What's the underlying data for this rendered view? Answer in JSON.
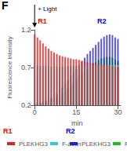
{
  "chart_data": {
    "type": "bar",
    "title": "F",
    "xlabel": "min",
    "ylabel": "Fluorescence intensity",
    "x": [
      0,
      1,
      2,
      3,
      4,
      5,
      6,
      7,
      8,
      9,
      10,
      11,
      12,
      13,
      14,
      15,
      16,
      17,
      18,
      19,
      20,
      21,
      22,
      23,
      24,
      25,
      26,
      27,
      28,
      29,
      30
    ],
    "xlim": [
      -0.5,
      31
    ],
    "xticks": [
      0,
      15,
      30
    ],
    "ylim": [
      0.2,
      1.2
    ],
    "yticks": [
      0.2,
      0.7,
      1.2
    ],
    "grid": false,
    "annotations": [
      {
        "text": "+ Light",
        "color": "black"
      },
      {
        "text": "R1",
        "color": "red"
      },
      {
        "text": "R2",
        "color": "blue"
      }
    ],
    "groups": [
      {
        "name": "R1",
        "color": "red"
      },
      {
        "name": "R2",
        "color": "blue"
      }
    ],
    "series": [
      {
        "name": "F-actin",
        "group": "R2",
        "color": "#22bb22",
        "values": [
          0.22,
          0.22,
          0.22,
          0.23,
          0.24,
          0.25,
          0.27,
          0.28,
          0.3,
          0.33,
          0.36,
          0.39,
          0.42,
          0.46,
          0.5,
          0.54,
          0.58,
          0.62,
          0.65,
          0.68,
          0.72,
          0.75,
          0.77,
          0.8,
          0.82,
          0.83,
          0.84,
          0.84,
          0.83,
          0.81,
          0.79
        ]
      },
      {
        "name": "PLEKHG3",
        "group": "R2",
        "color": "#2222cc",
        "values": [
          0.22,
          0.22,
          0.23,
          0.24,
          0.26,
          0.28,
          0.3,
          0.33,
          0.36,
          0.4,
          0.44,
          0.48,
          0.53,
          0.58,
          0.63,
          0.68,
          0.73,
          0.78,
          0.83,
          0.88,
          0.92,
          0.96,
          1.0,
          1.04,
          1.08,
          1.11,
          1.13,
          1.14,
          1.13,
          1.1,
          1.08
        ]
      },
      {
        "name": "F-actin",
        "group": "R1",
        "color": "#33cccc",
        "values": [
          0.73,
          0.73,
          0.72,
          0.72,
          0.72,
          0.71,
          0.71,
          0.71,
          0.71,
          0.71,
          0.71,
          0.71,
          0.72,
          0.72,
          0.72,
          0.72,
          0.73,
          0.73,
          0.73,
          0.73,
          0.73,
          0.73,
          0.73,
          0.73,
          0.73,
          0.73,
          0.73,
          0.73,
          0.73,
          0.73,
          0.73
        ]
      },
      {
        "name": "PLEKHG3",
        "group": "R1",
        "color": "#dd2222",
        "values": [
          1.14,
          1.1,
          1.06,
          1.02,
          0.98,
          0.95,
          0.92,
          0.9,
          0.88,
          0.86,
          0.85,
          0.84,
          0.83,
          0.82,
          0.81,
          0.81,
          0.8,
          0.79,
          0.78,
          0.77,
          0.76,
          0.76,
          0.75,
          0.75,
          0.74,
          0.74,
          0.73,
          0.73,
          0.72,
          0.72,
          0.71
        ]
      }
    ]
  }
}
